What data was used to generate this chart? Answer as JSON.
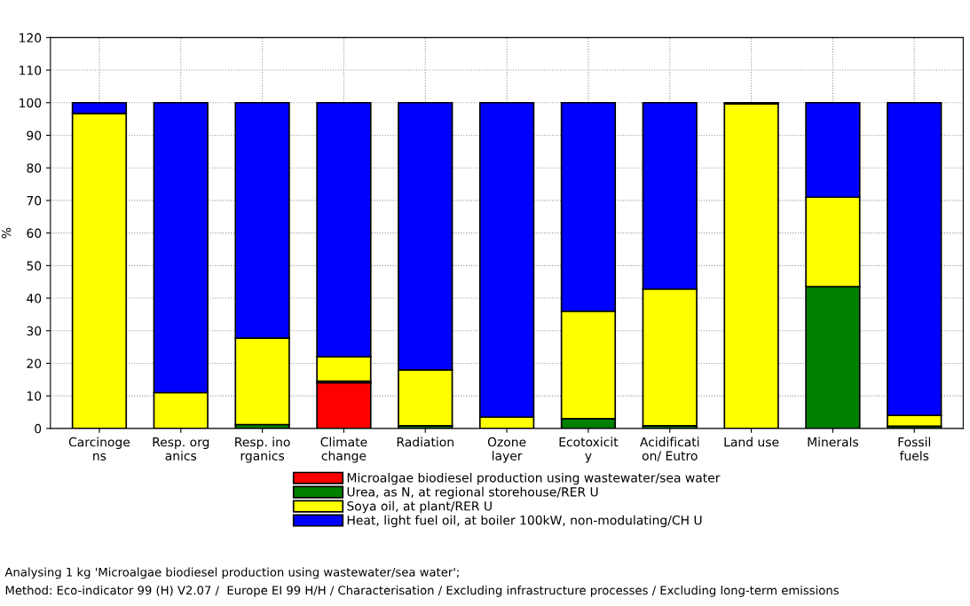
{
  "chart_data": {
    "type": "bar",
    "stacked": true,
    "ylabel": "%",
    "ylim": [
      0,
      120
    ],
    "yticks": [
      0,
      10,
      20,
      30,
      40,
      50,
      60,
      70,
      80,
      90,
      100,
      110,
      120
    ],
    "grid": true,
    "legend": "bottom",
    "categories": [
      "Carcinoge\nns",
      "Resp. org\nanics",
      "Resp. ino\nrganics",
      "Climate\nchange",
      "Radiation",
      "Ozone\nlayer",
      "Ecotoxicit\ny",
      "Acidificati\non/ Eutro",
      "Land use",
      "Minerals",
      "Fossil\nfuels"
    ],
    "series": [
      {
        "name": "Microalgae biodiesel production using wastewater/sea water",
        "color": "#ff0000",
        "values": [
          0,
          0,
          0,
          14,
          0,
          0,
          0,
          0,
          0,
          0,
          0
        ]
      },
      {
        "name": "Urea, as N, at regional storehouse/RER U",
        "color": "#008000",
        "values": [
          null,
          null,
          1.2,
          0.5,
          0.8,
          null,
          3,
          0.8,
          null,
          43.5,
          0.7
        ]
      },
      {
        "name": "Soya oil, at plant/RER U",
        "color": "#ffff00",
        "values": [
          96.7,
          11,
          26.5,
          7.5,
          17.2,
          3.5,
          33,
          42,
          99.7,
          27.5,
          3.3
        ]
      },
      {
        "name": "Heat, light fuel oil, at boiler 100kW, non-modulating/CH U",
        "color": "#0000ff",
        "values": [
          3.3,
          89,
          72.3,
          78,
          82,
          96.5,
          64,
          57.2,
          0.3,
          29,
          96
        ]
      }
    ],
    "annotations": [
      "Analysing 1 kg 'Microalgae biodiesel production using wastewater/sea water';",
      "Method: Eco-indicator 99 (H) V2.07 /  Europe EI 99 H/H / Characterisation / Excluding infrastructure processes / Excluding long-term emissions"
    ]
  }
}
